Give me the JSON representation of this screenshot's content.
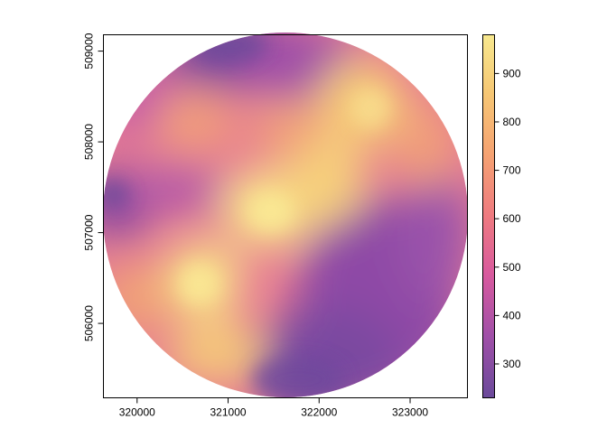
{
  "map": {
    "x_axis": {
      "ticks": [
        {
          "value": 320000,
          "label": "320000"
        },
        {
          "value": 321000,
          "label": "321000"
        },
        {
          "value": 322000,
          "label": "322000"
        },
        {
          "value": 323000,
          "label": "323000"
        }
      ]
    },
    "y_axis": {
      "ticks": [
        {
          "value": 506000,
          "label": "506000"
        },
        {
          "value": 507000,
          "label": "507000"
        },
        {
          "value": 508000,
          "label": "508000"
        },
        {
          "value": 509000,
          "label": "509000"
        }
      ]
    },
    "extent": {
      "xmin": 319630,
      "xmax": 323630,
      "ymin": 505180,
      "ymax": 509180
    },
    "center": {
      "x": 321630,
      "y": 507180
    },
    "radius": 2000,
    "legend": {
      "ticks": [
        {
          "value": 300,
          "label": "300"
        },
        {
          "value": 400,
          "label": "400"
        },
        {
          "value": 500,
          "label": "500"
        },
        {
          "value": 600,
          "label": "600"
        },
        {
          "value": 700,
          "label": "700"
        },
        {
          "value": 800,
          "label": "800"
        },
        {
          "value": 900,
          "label": "900"
        }
      ],
      "min": 230,
      "max": 980
    },
    "palette": [
      "#6a4a9a",
      "#a050a8",
      "#d85a9e",
      "#ee7a80",
      "#f5a272",
      "#f6c774",
      "#f7e88e"
    ]
  }
}
